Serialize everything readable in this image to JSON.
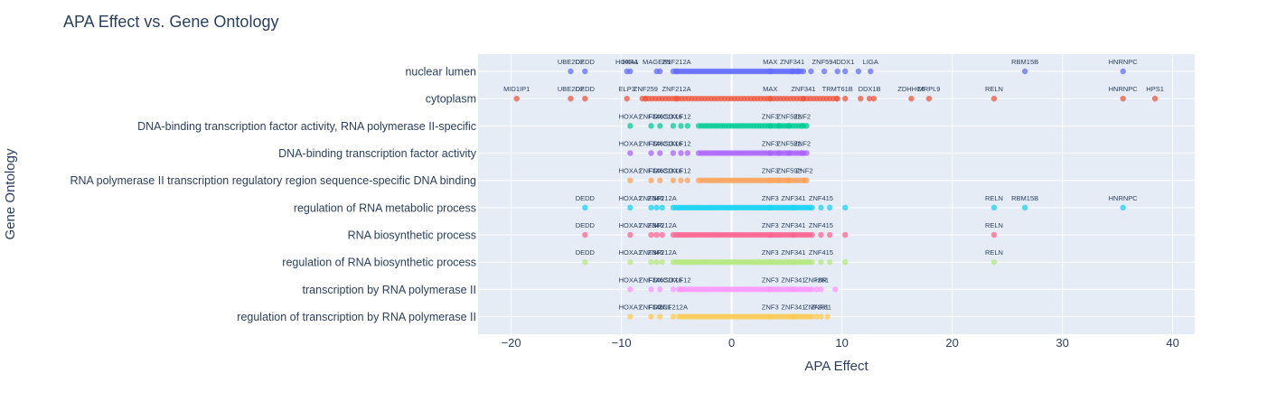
{
  "chart_data": {
    "type": "scatter",
    "title": "APA Effect vs. Gene Ontology",
    "xlabel": "APA Effect",
    "ylabel": "Gene Ontology",
    "xlim": [
      -23,
      42
    ],
    "x_ticks": [
      -20,
      -10,
      0,
      10,
      20,
      30,
      40
    ],
    "x_tick_labels": [
      "−20",
      "−10",
      "0",
      "10",
      "20",
      "30",
      "40"
    ],
    "grid": true,
    "legend": "none",
    "background": "#e5ecf6",
    "categories": [
      "nuclear lumen",
      "cytoplasm",
      "DNA-binding transcription factor activity, RNA polymerase II-specific",
      "DNA-binding transcription factor activity",
      "RNA polymerase II transcription regulatory region sequence-specific DNA binding",
      "regulation of RNA metabolic process",
      "RNA biosynthetic process",
      "regulation of RNA biosynthetic process",
      "transcription by RNA polymerase II",
      "regulation of transcription by RNA polymerase II"
    ],
    "series": [
      {
        "color": "#636efa",
        "category": "nuclear lumen",
        "x_min": -5.3,
        "x_max": 6.5,
        "dense_count": 55,
        "points": [
          {
            "x": -14.6,
            "label": "UBE2D2"
          },
          {
            "x": -13.3,
            "label": "DEDD"
          },
          {
            "x": -9.5,
            "label": "HOXA1"
          },
          {
            "x": -9.2,
            "label": "HIRA"
          },
          {
            "x": -6.8,
            "label": "MAGEB1"
          },
          {
            "x": -6.5,
            "label": ""
          },
          {
            "x": -5.0,
            "label": "ZNF212A"
          },
          {
            "x": 3.5,
            "label": "MAX"
          },
          {
            "x": 5.5,
            "label": "ZNF341"
          },
          {
            "x": 6.0,
            "label": ""
          },
          {
            "x": 7.2,
            "label": ""
          },
          {
            "x": 8.4,
            "label": "ZNF594"
          },
          {
            "x": 9.6,
            "label": ""
          },
          {
            "x": 10.3,
            "label": "DDX1"
          },
          {
            "x": 11.5,
            "label": ""
          },
          {
            "x": 12.6,
            "label": "LIGA"
          },
          {
            "x": 26.6,
            "label": "RBM15B"
          },
          {
            "x": 35.5,
            "label": "HNRNPC"
          }
        ]
      },
      {
        "color": "#ef553b",
        "category": "cytoplasm",
        "x_min": -8.1,
        "x_max": 9.5,
        "dense_count": 60,
        "points": [
          {
            "x": -19.5,
            "label": "MID1IP1"
          },
          {
            "x": -14.6,
            "label": "UBE2D2"
          },
          {
            "x": -13.3,
            "label": "DEDD"
          },
          {
            "x": -9.5,
            "label": "ELP3"
          },
          {
            "x": -7.8,
            "label": "ZNF259"
          },
          {
            "x": -5.0,
            "label": "ZNF212A"
          },
          {
            "x": 3.5,
            "label": "MAX"
          },
          {
            "x": 6.5,
            "label": "ZNF341"
          },
          {
            "x": 9.6,
            "label": "TRMT61B"
          },
          {
            "x": 10.3,
            "label": ""
          },
          {
            "x": 11.7,
            "label": ""
          },
          {
            "x": 12.5,
            "label": "DDX1B"
          },
          {
            "x": 12.9,
            "label": ""
          },
          {
            "x": 16.3,
            "label": "ZDHHC6"
          },
          {
            "x": 17.9,
            "label": "MRPL9"
          },
          {
            "x": 23.8,
            "label": "RELN"
          },
          {
            "x": 35.5,
            "label": "HNRNPC"
          },
          {
            "x": 38.4,
            "label": "HPS1"
          }
        ]
      },
      {
        "color": "#00cc96",
        "category": "DNA-binding transcription factor activity, RNA polymerase II-specific",
        "x_min": -3.0,
        "x_max": 6.8,
        "dense_count": 40,
        "points": [
          {
            "x": -9.2,
            "label": "HOXA1"
          },
          {
            "x": -7.3,
            "label": "ZNF346"
          },
          {
            "x": -6.5,
            "label": "FOXC1"
          },
          {
            "x": -5.3,
            "label": "SOX6"
          },
          {
            "x": -4.6,
            "label": "KLF12"
          },
          {
            "x": -4.0,
            "label": ""
          },
          {
            "x": 3.5,
            "label": "ZNF3"
          },
          {
            "x": 4.3,
            "label": ""
          },
          {
            "x": 5.2,
            "label": "ZNF592"
          },
          {
            "x": 6.4,
            "label": "ZNF2"
          }
        ]
      },
      {
        "color": "#ab63fa",
        "category": "DNA-binding transcription factor activity",
        "x_min": -3.0,
        "x_max": 6.8,
        "dense_count": 40,
        "points": [
          {
            "x": -9.2,
            "label": "HOXA1"
          },
          {
            "x": -7.3,
            "label": "ZNF346"
          },
          {
            "x": -6.5,
            "label": "FOXC1"
          },
          {
            "x": -5.3,
            "label": "SOX6"
          },
          {
            "x": -4.6,
            "label": "KLF12"
          },
          {
            "x": -4.0,
            "label": ""
          },
          {
            "x": 3.5,
            "label": "ZNF3"
          },
          {
            "x": 4.3,
            "label": ""
          },
          {
            "x": 5.2,
            "label": "ZNF592"
          },
          {
            "x": 6.4,
            "label": "ZNF2"
          }
        ]
      },
      {
        "color": "#ffa15a",
        "category": "RNA polymerase II transcription regulatory region sequence-specific DNA binding",
        "x_min": -3.0,
        "x_max": 6.8,
        "dense_count": 40,
        "points": [
          {
            "x": -9.2,
            "label": "HOXA1"
          },
          {
            "x": -7.3,
            "label": "ZNF346"
          },
          {
            "x": -6.5,
            "label": "FOXC1"
          },
          {
            "x": -5.3,
            "label": "SOX6"
          },
          {
            "x": -4.6,
            "label": "KLF12"
          },
          {
            "x": -4.0,
            "label": ""
          },
          {
            "x": 3.5,
            "label": "ZNF3"
          },
          {
            "x": 4.3,
            "label": ""
          },
          {
            "x": 5.2,
            "label": "ZNF592"
          },
          {
            "x": 6.6,
            "label": "ZNF2"
          }
        ]
      },
      {
        "color": "#19d3f3",
        "category": "regulation of RNA metabolic process",
        "x_min": -5.3,
        "x_max": 7.3,
        "dense_count": 60,
        "points": [
          {
            "x": -13.3,
            "label": "DEDD"
          },
          {
            "x": -9.2,
            "label": "HOXA1"
          },
          {
            "x": -7.3,
            "label": "ZNF346"
          },
          {
            "x": -6.8,
            "label": ""
          },
          {
            "x": -6.3,
            "label": "ZNF212A"
          },
          {
            "x": 3.5,
            "label": "ZNF3"
          },
          {
            "x": 5.6,
            "label": "ZNF341"
          },
          {
            "x": 8.1,
            "label": "ZNF415"
          },
          {
            "x": 8.9,
            "label": ""
          },
          {
            "x": 10.3,
            "label": ""
          },
          {
            "x": 23.8,
            "label": "RELN"
          },
          {
            "x": 26.6,
            "label": "RBM15B"
          },
          {
            "x": 35.5,
            "label": "HNRNPC"
          }
        ]
      },
      {
        "color": "#ff6692",
        "category": "RNA biosynthetic process",
        "x_min": -5.3,
        "x_max": 7.3,
        "dense_count": 60,
        "points": [
          {
            "x": -13.3,
            "label": "DEDD"
          },
          {
            "x": -9.2,
            "label": "HOXA1"
          },
          {
            "x": -7.3,
            "label": "ZNF346"
          },
          {
            "x": -6.8,
            "label": ""
          },
          {
            "x": -6.3,
            "label": "ZNF212A"
          },
          {
            "x": 3.5,
            "label": "ZNF3"
          },
          {
            "x": 5.6,
            "label": "ZNF341"
          },
          {
            "x": 8.1,
            "label": "ZNF415"
          },
          {
            "x": 8.9,
            "label": ""
          },
          {
            "x": 10.3,
            "label": ""
          },
          {
            "x": 23.8,
            "label": "RELN"
          }
        ]
      },
      {
        "color": "#b6e880",
        "category": "regulation of RNA biosynthetic process",
        "x_min": -5.3,
        "x_max": 7.3,
        "dense_count": 60,
        "points": [
          {
            "x": -13.3,
            "label": "DEDD"
          },
          {
            "x": -9.2,
            "label": "HOXA1"
          },
          {
            "x": -7.3,
            "label": "ZNF346"
          },
          {
            "x": -6.8,
            "label": ""
          },
          {
            "x": -6.3,
            "label": "ZNF212A"
          },
          {
            "x": 3.5,
            "label": "ZNF3"
          },
          {
            "x": 5.6,
            "label": "ZNF341"
          },
          {
            "x": 8.1,
            "label": "ZNF415"
          },
          {
            "x": 8.9,
            "label": ""
          },
          {
            "x": 10.3,
            "label": ""
          },
          {
            "x": 23.8,
            "label": "RELN"
          }
        ]
      },
      {
        "color": "#ff97ff",
        "category": "transcription by RNA polymerase II",
        "x_min": -4.8,
        "x_max": 7.3,
        "dense_count": 50,
        "points": [
          {
            "x": -9.2,
            "label": "HOXA1"
          },
          {
            "x": -7.3,
            "label": "ZNF346"
          },
          {
            "x": -6.5,
            "label": "FOXC1"
          },
          {
            "x": -5.3,
            "label": "SOX6"
          },
          {
            "x": -4.6,
            "label": "KLF12"
          },
          {
            "x": 3.5,
            "label": "ZNF3"
          },
          {
            "x": 5.6,
            "label": "ZNF341"
          },
          {
            "x": 7.7,
            "label": "ZNF281"
          },
          {
            "x": 8.1,
            "label": "HIR"
          },
          {
            "x": 9.4,
            "label": ""
          }
        ]
      },
      {
        "color": "#fecb52",
        "category": "regulation of transcription by RNA polymerase II",
        "x_min": -4.8,
        "x_max": 7.3,
        "dense_count": 50,
        "points": [
          {
            "x": -9.2,
            "label": "HOXA1"
          },
          {
            "x": -7.3,
            "label": "ZNF346"
          },
          {
            "x": -6.5,
            "label": "FOXC1"
          },
          {
            "x": -5.3,
            "label": "ZNF212A"
          },
          {
            "x": 3.5,
            "label": "ZNF3"
          },
          {
            "x": 5.6,
            "label": "ZNF341"
          },
          {
            "x": 7.7,
            "label": "ZNF281"
          },
          {
            "x": 8.1,
            "label": "ZNF81"
          },
          {
            "x": 8.7,
            "label": ""
          }
        ]
      }
    ]
  }
}
